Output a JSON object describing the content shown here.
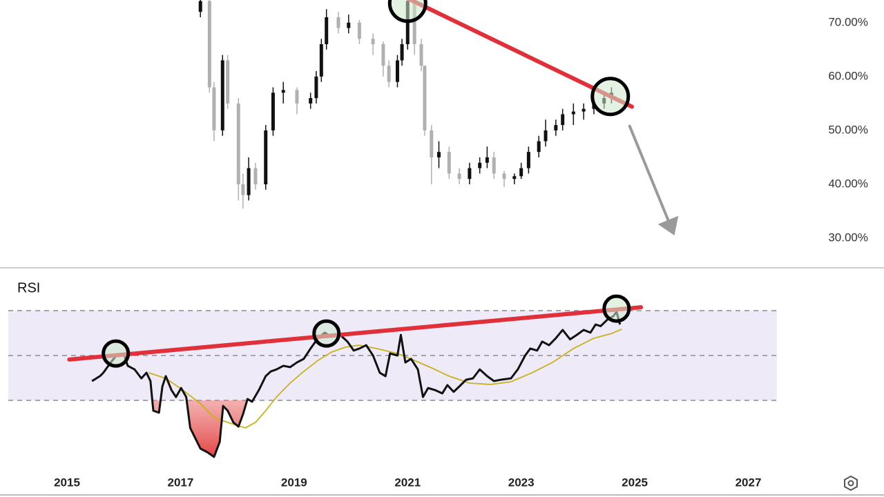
{
  "chart_data": [
    {
      "type": "candlestick",
      "xlim": [
        2013.82,
        2029.39
      ],
      "ylim": [
        24.5,
        74.2
      ],
      "yticks": [
        {
          "value": 70,
          "label": "70.00%"
        },
        {
          "value": 60,
          "label": "60.00%"
        },
        {
          "value": 50,
          "label": "50.00%"
        },
        {
          "value": 40,
          "label": "40.00%"
        },
        {
          "value": 30,
          "label": "30.00%"
        }
      ],
      "up_color": "#111111",
      "down_color": "#b0b0b0",
      "x": [
        2017.35,
        2017.51,
        2017.59,
        2017.74,
        2017.83,
        2018.02,
        2018.1,
        2018.2,
        2018.32,
        2018.5,
        2018.63,
        2018.81,
        2019.05,
        2019.29,
        2019.39,
        2019.48,
        2019.57,
        2019.78,
        2019.96,
        2020.15,
        2020.39,
        2020.57,
        2020.67,
        2020.82,
        2020.9,
        2021.0,
        2021.12,
        2021.24,
        2021.3,
        2021.42,
        2021.55,
        2021.73,
        2021.91,
        2022.09,
        2022.27,
        2022.4,
        2022.52,
        2022.7,
        2022.88,
        2023.0,
        2023.13,
        2023.31,
        2023.43,
        2023.61,
        2023.73,
        2023.92,
        2024.1,
        2024.28,
        2024.46,
        2024.59
      ],
      "open": [
        72,
        74,
        58,
        50,
        63,
        55,
        40,
        38,
        43,
        40,
        50,
        57,
        57.5,
        55,
        56,
        60,
        66,
        71,
        69,
        70,
        67,
        66,
        62,
        59,
        63,
        66,
        74,
        66,
        62,
        50,
        45,
        46,
        42,
        41,
        43,
        44,
        45,
        42,
        41,
        41.5,
        43,
        46,
        48,
        50,
        51,
        53,
        53.5,
        54,
        55,
        56
      ],
      "high": [
        75,
        74.5,
        59,
        64,
        64,
        56,
        42,
        45,
        44,
        51,
        58,
        59,
        58,
        57,
        61,
        67,
        72.5,
        72,
        71.5,
        70.5,
        68,
        66.5,
        63,
        64,
        67,
        74.5,
        74,
        67,
        62,
        51,
        48,
        47,
        43,
        44,
        45,
        47,
        46,
        42.5,
        42,
        44,
        47,
        49,
        52,
        52,
        54,
        55,
        55,
        56,
        57,
        58
      ],
      "low": [
        71,
        57,
        48,
        49,
        54,
        37,
        35.5,
        37,
        39,
        39,
        49,
        55,
        53,
        54,
        55,
        59,
        65,
        68,
        68,
        66,
        64,
        60,
        58,
        58,
        62,
        65,
        64,
        61,
        49,
        40,
        43,
        41,
        40,
        40,
        42,
        43,
        41,
        39.5,
        40,
        41,
        42,
        45,
        47,
        49,
        50,
        51,
        52,
        53,
        54,
        55
      ],
      "close": [
        74,
        58,
        50,
        63,
        55,
        40,
        38,
        43,
        40,
        50,
        57,
        57.5,
        55,
        56,
        60,
        66,
        71,
        69,
        70,
        67,
        66,
        62,
        59,
        63,
        66,
        74,
        66,
        62,
        50,
        45,
        46,
        42,
        41,
        43,
        44,
        45,
        42,
        41,
        41.5,
        43,
        46,
        48,
        50,
        51,
        53,
        53.5,
        54,
        55,
        56,
        57
      ],
      "annotations": [
        {
          "type": "line",
          "color": "#e0303a",
          "x": [
            2021.0,
            2024.95
          ],
          "y": [
            74.5,
            54.4
          ]
        },
        {
          "type": "arrow",
          "color": "#9a9a9a",
          "x": [
            2024.91,
            2025.68
          ],
          "y": [
            50.8,
            31.0
          ]
        },
        {
          "type": "circle",
          "x": 2021.0,
          "y": 73.6
        },
        {
          "type": "circle",
          "x": 2024.57,
          "y": 56.3
        }
      ]
    },
    {
      "type": "line",
      "title": "RSI",
      "xlim": [
        2013.82,
        2029.39
      ],
      "ylim": [
        0,
        88
      ],
      "xticks": [
        2015,
        2017,
        2019,
        2021,
        2023,
        2025,
        2027
      ],
      "levels": [
        30,
        50,
        70
      ],
      "band_color": "#eeeaf8",
      "oversold_color": "#e03030",
      "series": [
        {
          "color": "#111111",
          "x": [
            2015.44,
            2015.58,
            2015.64,
            2015.77,
            2015.89,
            2016.01,
            2016.07,
            2016.19,
            2016.31,
            2016.4,
            2016.47,
            2016.52,
            2016.62,
            2016.68,
            2016.74,
            2016.84,
            2016.92,
            2017.01,
            2017.1,
            2017.17,
            2017.26,
            2017.35,
            2017.47,
            2017.59,
            2017.69,
            2017.75,
            2017.83,
            2017.93,
            2018.02,
            2018.1,
            2018.18,
            2018.26,
            2018.38,
            2018.5,
            2018.59,
            2018.69,
            2018.81,
            2018.93,
            2019.05,
            2019.17,
            2019.29,
            2019.42,
            2019.54,
            2019.66,
            2019.81,
            2019.94,
            2020.05,
            2020.15,
            2020.27,
            2020.39,
            2020.51,
            2020.61,
            2020.69,
            2020.82,
            2020.88,
            2020.96,
            2021.06,
            2021.18,
            2021.27,
            2021.36,
            2021.48,
            2021.61,
            2021.7,
            2021.81,
            2021.91,
            2022.03,
            2022.15,
            2022.27,
            2022.4,
            2022.52,
            2022.64,
            2022.82,
            2022.94,
            2023.07,
            2023.16,
            2023.28,
            2023.37,
            2023.49,
            2023.61,
            2023.73,
            2023.86,
            2023.98,
            2024.1,
            2024.22,
            2024.31,
            2024.4,
            2024.53,
            2024.62,
            2024.68,
            2024.74
          ],
          "values": [
            38.6,
            40.8,
            42.3,
            46.9,
            50.6,
            50,
            45.4,
            43.8,
            39.8,
            42.3,
            38.6,
            25.4,
            24.5,
            36.2,
            40.8,
            34.6,
            31.5,
            35.5,
            31.5,
            17.7,
            13.1,
            8.5,
            6.9,
            4.8,
            11.5,
            27.5,
            25.4,
            20.2,
            18.3,
            23.8,
            30.6,
            29.4,
            34.6,
            40.8,
            42.9,
            43.8,
            45.4,
            44.8,
            46.9,
            48.5,
            53.1,
            57.7,
            60.2,
            58.3,
            59.2,
            56.2,
            52.2,
            53.1,
            54.6,
            50,
            42.3,
            40.8,
            50.9,
            50,
            59.2,
            46.9,
            48.5,
            43.8,
            31.5,
            35.5,
            34.6,
            33.1,
            36.8,
            33.8,
            36.2,
            39.2,
            39.8,
            43.8,
            40.8,
            38.6,
            39.2,
            39.8,
            43.8,
            50,
            53.1,
            52.2,
            56.2,
            54.6,
            57.7,
            61.4,
            57.2,
            59.2,
            61.4,
            60.2,
            63.8,
            63.1,
            66.3,
            67.5,
            69.4,
            63.8
          ]
        },
        {
          "color": "#c9b020",
          "x": [
            2016.44,
            2016.74,
            2017.04,
            2017.35,
            2017.59,
            2017.83,
            2018.14,
            2018.32,
            2018.5,
            2018.69,
            2018.93,
            2019.17,
            2019.42,
            2019.66,
            2019.9,
            2020.15,
            2020.45,
            2020.82,
            2021.12,
            2021.42,
            2021.73,
            2022.09,
            2022.46,
            2022.82,
            2023.19,
            2023.55,
            2023.92,
            2024.28,
            2024.59,
            2024.77
          ],
          "values": [
            42.3,
            39.8,
            34.6,
            28.5,
            22.3,
            20.2,
            17.7,
            20.2,
            25.4,
            31.5,
            37.7,
            42.9,
            47.8,
            51.5,
            53.7,
            54.6,
            53.1,
            50.9,
            47.8,
            44.5,
            40.8,
            37.7,
            37.1,
            38.3,
            42.3,
            46.9,
            53.1,
            57.7,
            59.8,
            61.7
          ]
        }
      ],
      "annotations": [
        {
          "type": "line",
          "color": "#e0303a",
          "x": [
            2015.04,
            2025.11
          ],
          "y": [
            48.2,
            71.5
          ]
        },
        {
          "type": "circle",
          "x": 2015.86,
          "y": 50.9
        },
        {
          "type": "circle",
          "x": 2019.57,
          "y": 59.8
        },
        {
          "type": "circle",
          "x": 2024.68,
          "y": 70.9
        }
      ]
    }
  ]
}
